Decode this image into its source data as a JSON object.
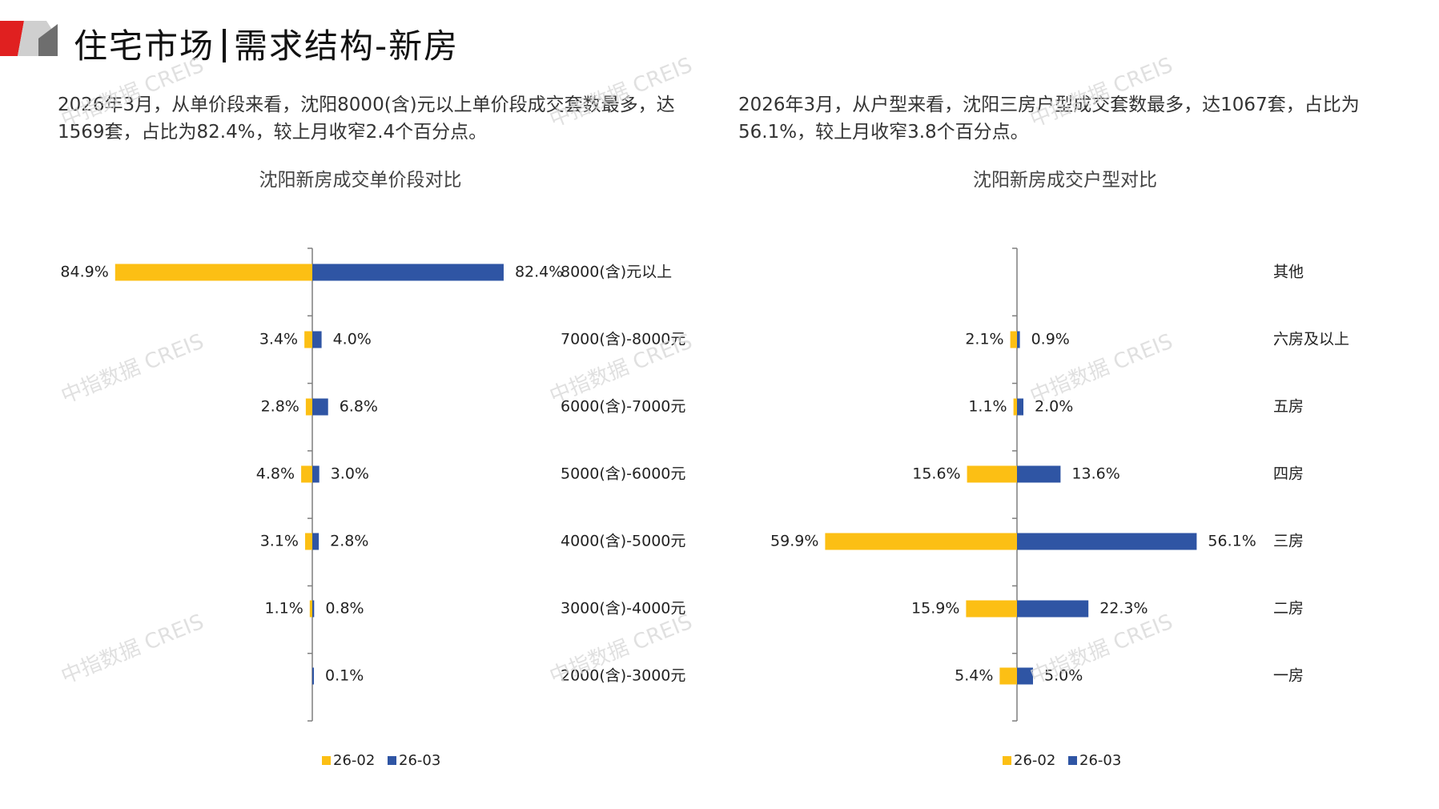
{
  "page": {
    "title_part1": "住宅市场",
    "title_part2": "需求结构-新房",
    "desc_left": "2026年3月，从单价段来看，沈阳8000(含)元以上单价段成交套数最多，达1569套，占比为82.4%，较上月收窄2.4个百分点。",
    "desc_right": "2026年3月，从户型来看，沈阳三房户型成交套数最多，达1067套，占比为56.1%，较上月收窄3.8个百分点。",
    "watermark": "中指数据 CREIS",
    "colors": {
      "prev": "#FCBF14",
      "curr": "#2F55A4",
      "axis": "#7f7f7f",
      "logo_red": "#E02020",
      "logo_gray": "#9a9a9a"
    }
  },
  "chart_data": [
    {
      "type": "bar",
      "title": "沈阳新房成交单价段对比",
      "categories": [
        "8000(含)元以上",
        "7000(含)-8000元",
        "6000(含)-7000元",
        "5000(含)-6000元",
        "4000(含)-5000元",
        "3000(含)-4000元",
        "2000(含)-3000元"
      ],
      "series": [
        {
          "name": "26-02",
          "values": [
            84.9,
            3.4,
            2.8,
            4.8,
            3.1,
            1.1,
            null
          ],
          "labels": [
            "84.9%",
            "3.4%",
            "2.8%",
            "4.8%",
            "3.1%",
            "1.1%",
            ""
          ]
        },
        {
          "name": "26-03",
          "values": [
            82.4,
            4.0,
            6.8,
            3.0,
            2.8,
            0.8,
            0.1
          ],
          "labels": [
            "82.4%",
            "4.0%",
            "6.8%",
            "3.0%",
            "2.8%",
            "0.8%",
            "0.1%"
          ]
        }
      ],
      "legend": "bottom"
    },
    {
      "type": "bar",
      "title": "沈阳新房成交户型对比",
      "categories": [
        "其他",
        "六房及以上",
        "五房",
        "四房",
        "三房",
        "二房",
        "一房"
      ],
      "series": [
        {
          "name": "26-02",
          "values": [
            null,
            2.1,
            1.1,
            15.6,
            59.9,
            15.9,
            5.4
          ],
          "labels": [
            "",
            "2.1%",
            "1.1%",
            "15.6%",
            "59.9%",
            "15.9%",
            "5.4%"
          ]
        },
        {
          "name": "26-03",
          "values": [
            null,
            0.9,
            2.0,
            13.6,
            56.1,
            22.3,
            5.0
          ],
          "labels": [
            "",
            "0.9%",
            "2.0%",
            "13.6%",
            "56.1%",
            "22.3%",
            "5.0%"
          ]
        }
      ],
      "legend": "bottom"
    }
  ]
}
